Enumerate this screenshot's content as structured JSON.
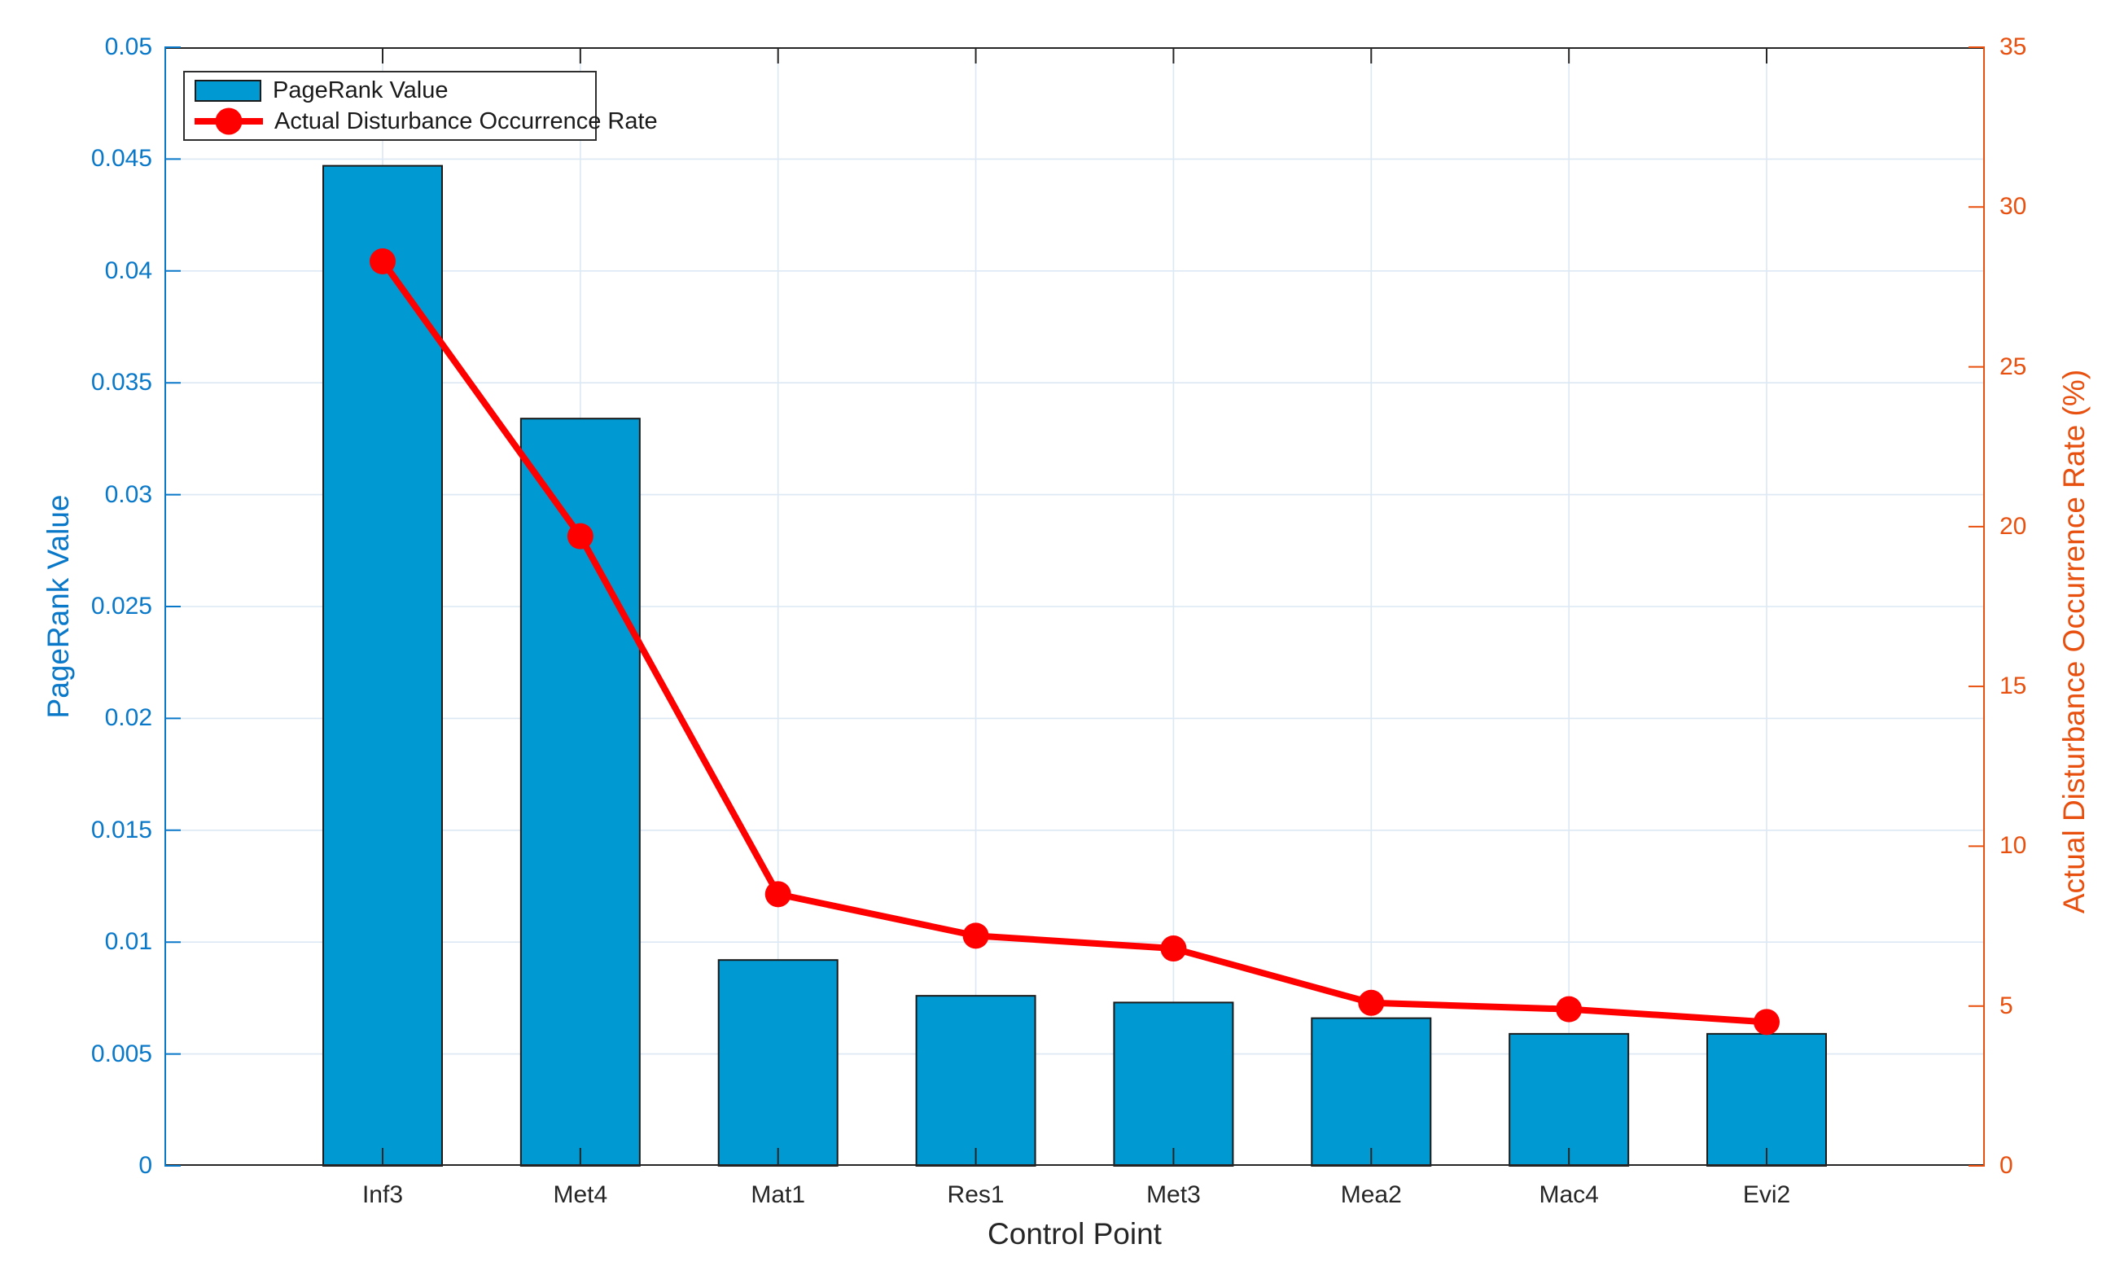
{
  "chart_data": {
    "type": "bar",
    "subtype": "dual-axis-bar-line",
    "categories": [
      "Inf3",
      "Met4",
      "Mat1",
      "Res1",
      "Met3",
      "Mea2",
      "Mac4",
      "Evi2"
    ],
    "series": [
      {
        "name": "PageRank Value",
        "type": "bar",
        "axis": "left",
        "color": "#0099d1",
        "edge_color": "#1a1a1a",
        "values": [
          0.0447,
          0.0334,
          0.0092,
          0.0076,
          0.0073,
          0.0066,
          0.0059,
          0.0059
        ]
      },
      {
        "name": "Actual Disturbance Occurrence Rate",
        "type": "line",
        "axis": "right",
        "color": "#ff0000",
        "marker": "filled-circle",
        "values": [
          28.3,
          19.7,
          8.5,
          7.2,
          6.8,
          5.1,
          4.9,
          4.5
        ]
      }
    ],
    "x_axis": {
      "label": "Control Point",
      "color": "#262626"
    },
    "left_axis": {
      "label": "PageRank Value",
      "color": "#0a78c8",
      "min": 0,
      "max": 0.05,
      "tick_step": 0.005,
      "ticks": [
        {
          "value": 0,
          "label": "0"
        },
        {
          "value": 0.005,
          "label": "0.005"
        },
        {
          "value": 0.01,
          "label": "0.01"
        },
        {
          "value": 0.015,
          "label": "0.015"
        },
        {
          "value": 0.02,
          "label": "0.02"
        },
        {
          "value": 0.025,
          "label": "0.025"
        },
        {
          "value": 0.03,
          "label": "0.03"
        },
        {
          "value": 0.035,
          "label": "0.035"
        },
        {
          "value": 0.04,
          "label": "0.04"
        },
        {
          "value": 0.045,
          "label": "0.045"
        },
        {
          "value": 0.05,
          "label": "0.05"
        }
      ]
    },
    "right_axis": {
      "label": "Actual Disturbance Occurrence Rate (%)",
      "color": "#e8500f",
      "min": 0,
      "max": 35,
      "tick_step": 5,
      "ticks": [
        {
          "value": 0,
          "label": "0"
        },
        {
          "value": 5,
          "label": "5"
        },
        {
          "value": 10,
          "label": "10"
        },
        {
          "value": 15,
          "label": "15"
        },
        {
          "value": 20,
          "label": "20"
        },
        {
          "value": 25,
          "label": "25"
        },
        {
          "value": 30,
          "label": "30"
        },
        {
          "value": 35,
          "label": "35"
        }
      ]
    },
    "grid": {
      "show": true,
      "color": "#dce8f4"
    },
    "legend": {
      "position": "top-left",
      "entries": [
        "PageRank Value",
        "Actual Disturbance Occurrence Rate"
      ]
    }
  }
}
